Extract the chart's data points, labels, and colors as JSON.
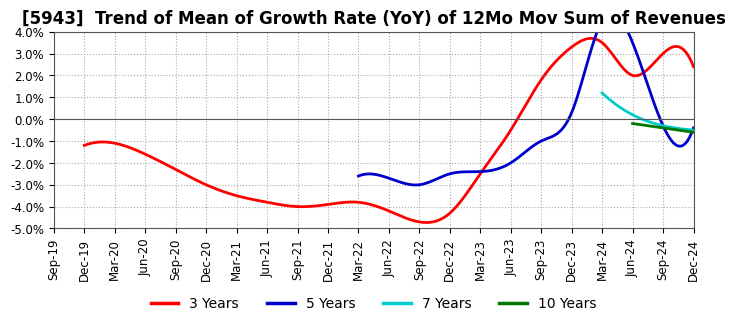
{
  "title": "[5943]  Trend of Mean of Growth Rate (YoY) of 12Mo Mov Sum of Revenues",
  "ylim": [
    -0.05,
    0.04
  ],
  "yticks": [
    -0.05,
    -0.04,
    -0.03,
    -0.02,
    -0.01,
    0.0,
    0.01,
    0.02,
    0.03,
    0.04
  ],
  "background_color": "#ffffff",
  "grid_color": "#aaaaaa",
  "x_labels": [
    "Sep-19",
    "Dec-19",
    "Mar-20",
    "Jun-20",
    "Sep-20",
    "Dec-20",
    "Mar-21",
    "Jun-21",
    "Sep-21",
    "Dec-21",
    "Mar-22",
    "Jun-22",
    "Sep-22",
    "Dec-22",
    "Mar-23",
    "Jun-23",
    "Sep-23",
    "Dec-23",
    "Mar-24",
    "Jun-24",
    "Sep-24",
    "Dec-24"
  ],
  "series_3y": {
    "color": "#ff0000",
    "label": "3 Years",
    "values": [
      null,
      -0.012,
      -0.011,
      -0.016,
      -0.023,
      -0.03,
      -0.035,
      -0.038,
      -0.04,
      -0.039,
      -0.038,
      -0.042,
      -0.047,
      -0.043,
      -0.025,
      -0.005,
      0.018,
      0.033,
      0.035,
      0.02,
      0.03,
      0.024
    ]
  },
  "series_5y": {
    "color": "#0000cc",
    "label": "5 Years",
    "values": [
      null,
      null,
      null,
      null,
      null,
      null,
      null,
      null,
      null,
      null,
      -0.026,
      -0.027,
      -0.03,
      -0.025,
      -0.024,
      -0.02,
      -0.01,
      0.003,
      0.045,
      0.035,
      -0.003,
      -0.004
    ]
  },
  "series_7y": {
    "color": "#00cccc",
    "label": "7 Years",
    "values": [
      null,
      null,
      null,
      null,
      null,
      null,
      null,
      null,
      null,
      null,
      null,
      null,
      null,
      null,
      null,
      null,
      null,
      null,
      0.012,
      0.002,
      -0.003,
      -0.005
    ]
  },
  "series_10y": {
    "color": "#007700",
    "label": "10 Years",
    "values": [
      null,
      null,
      null,
      null,
      null,
      null,
      null,
      null,
      null,
      null,
      null,
      null,
      null,
      null,
      null,
      null,
      null,
      null,
      null,
      -0.002,
      -0.004,
      -0.006
    ]
  },
  "linewidth": 2.0,
  "title_fontsize": 12,
  "legend_fontsize": 10,
  "tick_fontsize": 8.5
}
